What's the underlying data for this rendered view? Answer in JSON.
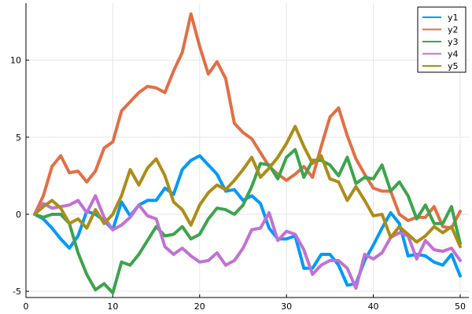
{
  "chart_data": {
    "type": "line",
    "title": "",
    "xlabel": "",
    "ylabel": "",
    "xlim": [
      0,
      51
    ],
    "ylim": [
      -5.4,
      13.7
    ],
    "xticks": [
      0,
      10,
      20,
      30,
      40,
      50
    ],
    "yticks": [
      -5,
      0,
      5,
      10
    ],
    "xtick_labels": [
      "0",
      "10",
      "20",
      "30",
      "40",
      "50"
    ],
    "ytick_labels": [
      "-5",
      "0",
      "5",
      "10"
    ],
    "grid": true,
    "legend_position": "top-right",
    "x": [
      1,
      2,
      3,
      4,
      5,
      6,
      7,
      8,
      9,
      10,
      11,
      12,
      13,
      14,
      15,
      16,
      17,
      18,
      19,
      20,
      21,
      22,
      23,
      24,
      25,
      26,
      27,
      28,
      29,
      30,
      31,
      32,
      33,
      34,
      35,
      36,
      37,
      38,
      39,
      40,
      41,
      42,
      43,
      44,
      45,
      46,
      47,
      48,
      49,
      50
    ],
    "series": [
      {
        "name": "y1",
        "color": "#009af9",
        "values": [
          0.0,
          -0.3,
          -0.9,
          -1.6,
          -2.2,
          -1.4,
          0.2,
          0.0,
          -0.4,
          -1.0,
          0.8,
          -0.1,
          0.6,
          0.9,
          0.9,
          1.7,
          1.3,
          2.9,
          3.5,
          3.8,
          3.2,
          2.6,
          1.5,
          1.6,
          0.9,
          1.2,
          0.7,
          -0.9,
          -1.6,
          -1.6,
          -1.4,
          -3.5,
          -3.5,
          -2.6,
          -2.6,
          -3.3,
          -4.6,
          -4.5,
          -3.0,
          -2.0,
          -0.9,
          0.1,
          -0.6,
          -2.7,
          -2.6,
          -2.7,
          -3.1,
          -3.3,
          -2.6,
          -4.0
        ]
      },
      {
        "name": "y2",
        "color": "#e26f46",
        "values": [
          0.0,
          1.2,
          3.1,
          3.8,
          2.7,
          2.8,
          2.1,
          2.8,
          4.3,
          4.7,
          6.7,
          7.3,
          7.9,
          8.3,
          8.2,
          7.9,
          9.3,
          10.5,
          13.0,
          10.9,
          9.1,
          9.9,
          8.8,
          5.9,
          5.3,
          4.9,
          4.0,
          3.1,
          2.6,
          2.2,
          2.6,
          3.1,
          2.4,
          4.4,
          6.3,
          6.9,
          5.1,
          3.6,
          2.6,
          1.7,
          1.5,
          1.5,
          0.0,
          -0.4,
          -0.2,
          -0.2,
          0.5,
          -0.8,
          -0.9,
          0.2
        ]
      },
      {
        "name": "y3",
        "color": "#3da44d",
        "values": [
          0.0,
          -0.2,
          0.0,
          0.0,
          -0.6,
          -2.5,
          -3.9,
          -4.9,
          -4.5,
          -5.1,
          -3.1,
          -3.3,
          -2.6,
          -1.7,
          -0.8,
          -1.4,
          -1.3,
          -0.8,
          -1.6,
          -1.3,
          -0.3,
          0.4,
          0.3,
          0.0,
          0.6,
          1.8,
          3.3,
          3.2,
          2.3,
          3.7,
          4.2,
          2.4,
          3.5,
          3.5,
          3.2,
          2.5,
          3.7,
          2.0,
          2.4,
          2.3,
          3.2,
          1.5,
          2.1,
          1.2,
          -0.3,
          0.6,
          -0.6,
          -0.6,
          0.5,
          -1.9
        ]
      },
      {
        "name": "y4",
        "color": "#c271d2",
        "values": [
          0.0,
          0.7,
          0.4,
          0.5,
          0.6,
          0.9,
          0.1,
          1.2,
          -0.2,
          -1.0,
          -0.7,
          -0.2,
          0.6,
          -0.1,
          -0.3,
          -2.1,
          -2.6,
          -2.2,
          -2.7,
          -3.1,
          -3.0,
          -2.5,
          -3.3,
          -3.0,
          -2.2,
          -1.0,
          -0.9,
          0.1,
          -1.7,
          -1.1,
          -1.3,
          -2.3,
          -3.9,
          -3.3,
          -3.0,
          -3.0,
          -3.5,
          -4.8,
          -2.6,
          -2.9,
          -2.5,
          -1.5,
          -1.2,
          -1.4,
          -2.9,
          -1.7,
          -2.3,
          -2.4,
          -2.2,
          -3.0
        ]
      },
      {
        "name": "y5",
        "color": "#ac8d18",
        "values": [
          0.0,
          0.5,
          0.9,
          0.4,
          -0.6,
          -0.3,
          -0.9,
          0.3,
          -0.6,
          0.0,
          1.2,
          2.9,
          1.9,
          3.0,
          3.6,
          2.5,
          0.8,
          0.3,
          -0.7,
          0.6,
          1.4,
          1.9,
          1.6,
          2.2,
          2.9,
          3.7,
          2.4,
          3.0,
          3.7,
          4.6,
          5.7,
          4.4,
          3.3,
          3.8,
          2.3,
          2.1,
          0.9,
          1.8,
          0.9,
          -0.1,
          0.0,
          -1.5,
          -0.8,
          -1.3,
          -1.8,
          -1.4,
          -0.8,
          -1.2,
          -0.8,
          -2.1
        ]
      }
    ]
  }
}
